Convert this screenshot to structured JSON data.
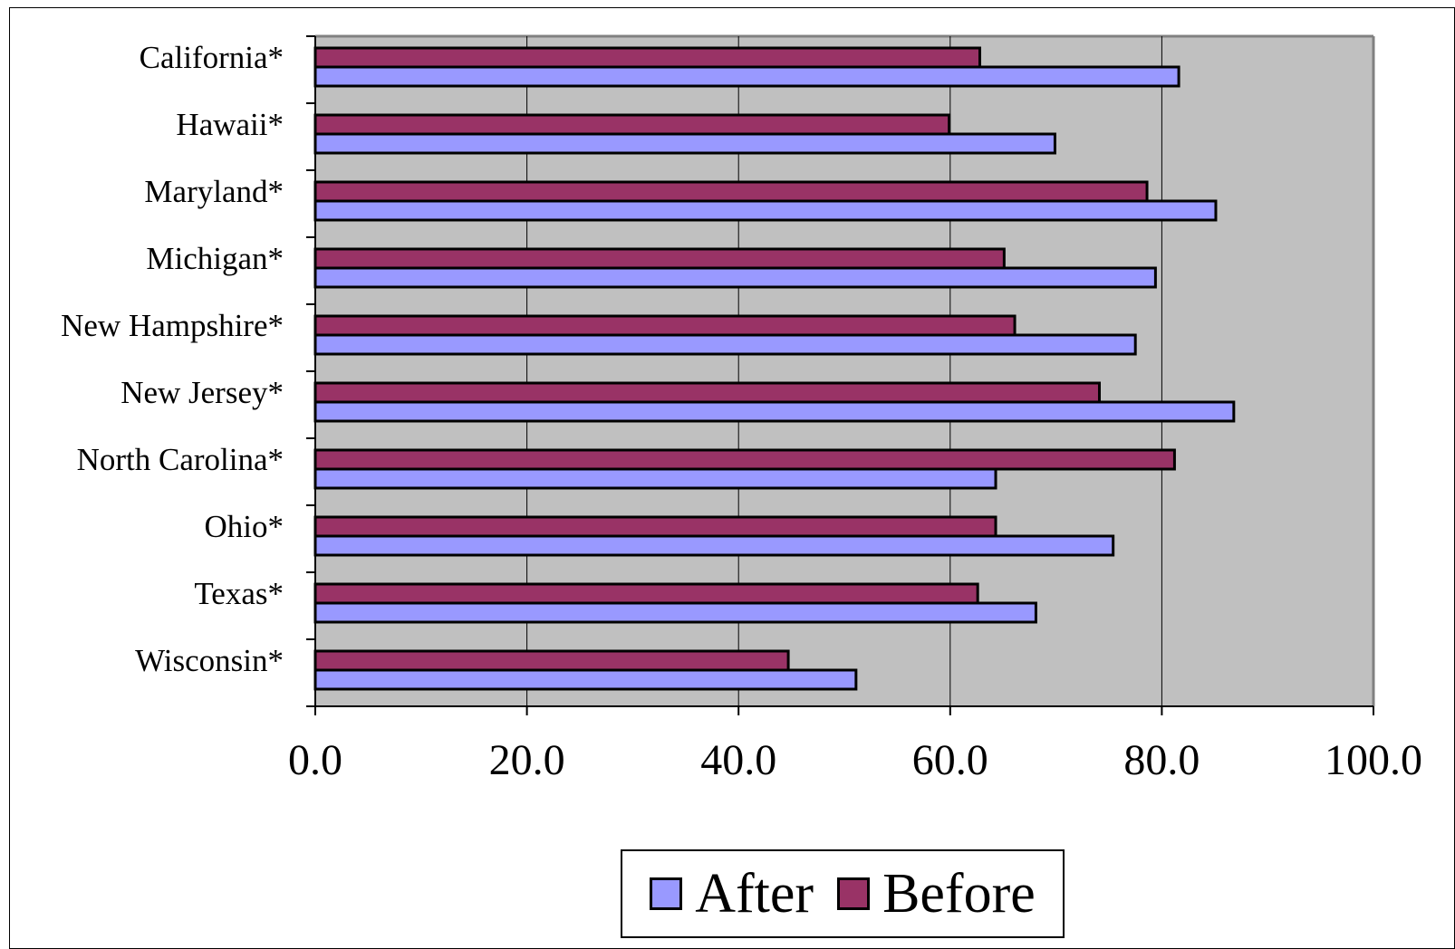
{
  "chart_data": {
    "type": "bar",
    "orientation": "horizontal",
    "title": "",
    "categories": [
      "California*",
      "Hawaii*",
      "Maryland*",
      "Michigan*",
      "New Hampshire*",
      "New Jersey*",
      "North Carolina*",
      "Ohio*",
      "Texas*",
      "Wisconsin*"
    ],
    "series": [
      {
        "name": "Before",
        "color": "#993366",
        "values": [
          62.8,
          59.9,
          78.6,
          65.1,
          66.1,
          74.1,
          81.2,
          64.3,
          62.6,
          44.7
        ]
      },
      {
        "name": "After",
        "color": "#9999ff",
        "values": [
          81.6,
          69.9,
          85.1,
          79.4,
          77.5,
          86.8,
          64.3,
          75.4,
          68.1,
          51.1
        ]
      }
    ],
    "xlim": [
      0,
      100
    ],
    "xticks": [
      "0.0",
      "20.0",
      "40.0",
      "60.0",
      "80.0",
      "100.0"
    ],
    "xlabel": "",
    "ylabel": "",
    "plot_background": "#c0c0c0",
    "grid": "vertical",
    "legend": {
      "placement": "bottom",
      "entries": [
        "After",
        "Before"
      ]
    }
  }
}
